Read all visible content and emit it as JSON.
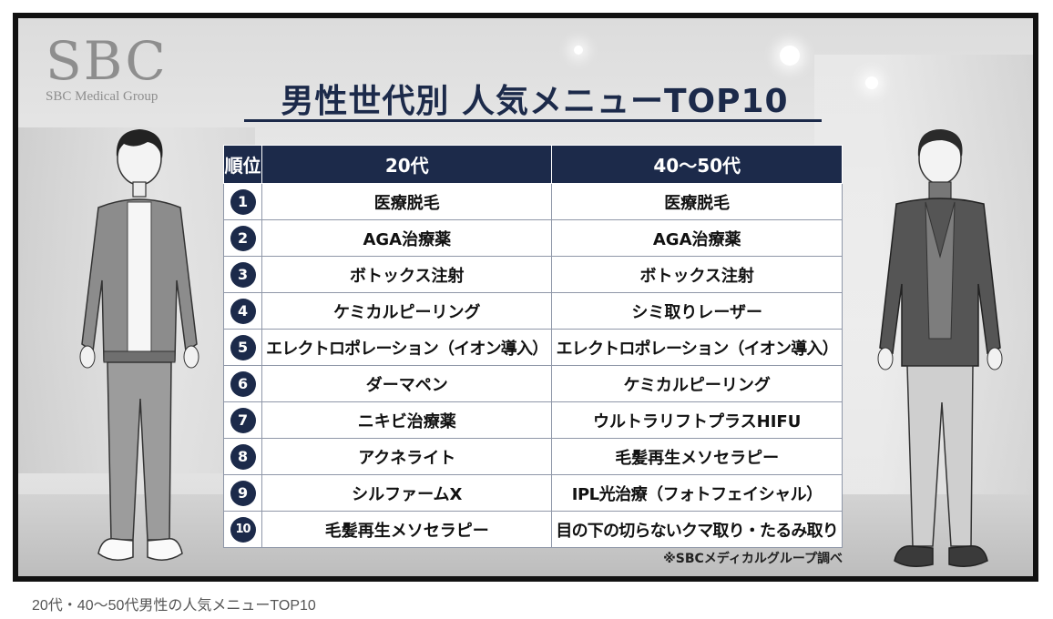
{
  "logo": {
    "mark": "SBC",
    "subtitle": "SBC Medical Group"
  },
  "title": "男性世代別 人気メニューTOP10",
  "table": {
    "headers": {
      "rank": "順位",
      "col1": "20代",
      "col2": "40〜50代"
    },
    "rows": [
      {
        "rank": "1",
        "col1": "医療脱毛",
        "col2": "医療脱毛"
      },
      {
        "rank": "2",
        "col1": "AGA治療薬",
        "col2": "AGA治療薬"
      },
      {
        "rank": "3",
        "col1": "ボトックス注射",
        "col2": "ボトックス注射"
      },
      {
        "rank": "4",
        "col1": "ケミカルピーリング",
        "col2": "シミ取りレーザー"
      },
      {
        "rank": "5",
        "col1": "エレクトロポレーション（イオン導入）",
        "col2": "エレクトロポレーション（イオン導入）"
      },
      {
        "rank": "6",
        "col1": "ダーマペン",
        "col2": "ケミカルピーリング"
      },
      {
        "rank": "7",
        "col1": "ニキビ治療薬",
        "col2": "ウルトラリフトプラスHIFU"
      },
      {
        "rank": "8",
        "col1": "アクネライト",
        "col2": "毛髪再生メソセラピー"
      },
      {
        "rank": "9",
        "col1": "シルファームX",
        "col2": "IPL光治療（フォトフェイシャル）"
      },
      {
        "rank": "10",
        "col1": "毛髪再生メソセラピー",
        "col2": "目の下の切らないクマ取り・たるみ取り"
      }
    ]
  },
  "note": "※SBCメディカルグループ調べ",
  "caption": "20代・40〜50代男性の人気メニューTOP10",
  "colors": {
    "navy": "#1c2a4a",
    "frame": "#111111"
  }
}
